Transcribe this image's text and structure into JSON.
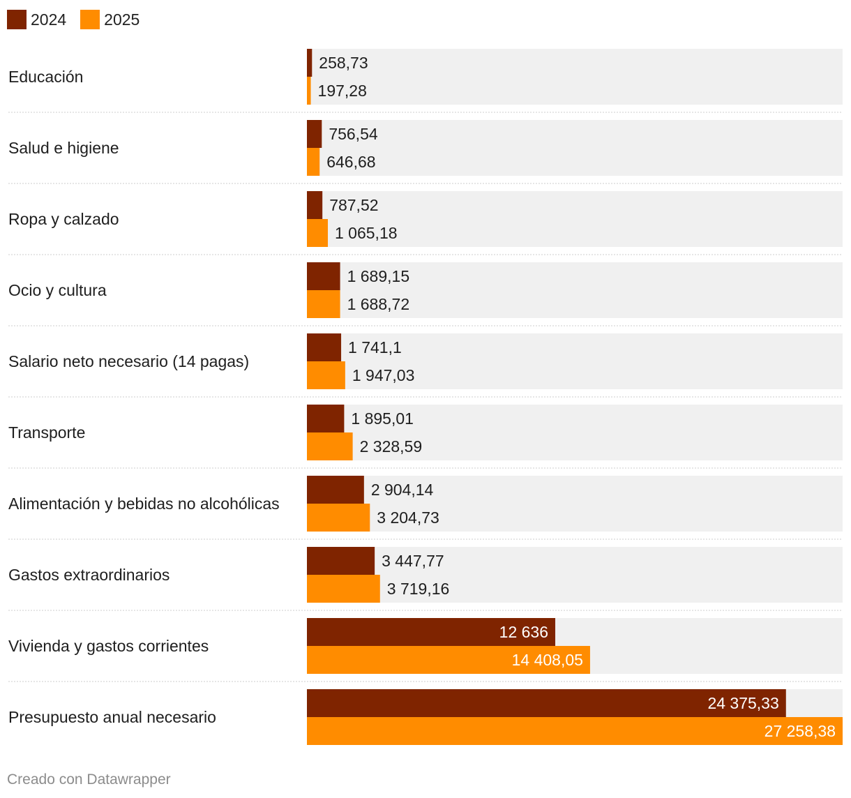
{
  "legend": {
    "items": [
      {
        "label": "2024",
        "color": "#7f2400"
      },
      {
        "label": "2025",
        "color": "#ff8c00"
      }
    ]
  },
  "chart_data": {
    "type": "bar",
    "orientation": "horizontal",
    "categories": [
      "Educación",
      "Salud e higiene",
      "Ropa y calzado",
      "Ocio y cultura",
      "Salario neto necesario (14 pagas)",
      "Transporte",
      "Alimentación y bebidas no alcohólicas",
      "Gastos extraordinarios",
      "Vivienda y gastos corrientes",
      "Presupuesto anual necesario"
    ],
    "series": [
      {
        "name": "2024",
        "color": "#7f2400",
        "values": [
          258.73,
          756.54,
          787.52,
          1689.15,
          1741.1,
          1895.01,
          2904.14,
          3447.77,
          12636,
          24375.33
        ],
        "labels": [
          "258,73",
          "756,54",
          "787,52",
          "1 689,15",
          "1 741,1",
          "1 895,01",
          "2 904,14",
          "3 447,77",
          "12 636",
          "24 375,33"
        ]
      },
      {
        "name": "2025",
        "color": "#ff8c00",
        "values": [
          197.28,
          646.68,
          1065.18,
          1688.72,
          1947.03,
          2328.59,
          3204.73,
          3719.16,
          14408.05,
          27258.38
        ],
        "labels": [
          "197,28",
          "646,68",
          "1 065,18",
          "1 688,72",
          "1 947,03",
          "2 328,59",
          "3 204,73",
          "3 719,16",
          "14 408,05",
          "27 258,38"
        ]
      }
    ],
    "xlim": [
      0,
      27258.38
    ],
    "background_bar_color": "#f0f0f0",
    "separator_color": "#cccccc"
  },
  "footer": {
    "credit": "Creado con Datawrapper"
  }
}
